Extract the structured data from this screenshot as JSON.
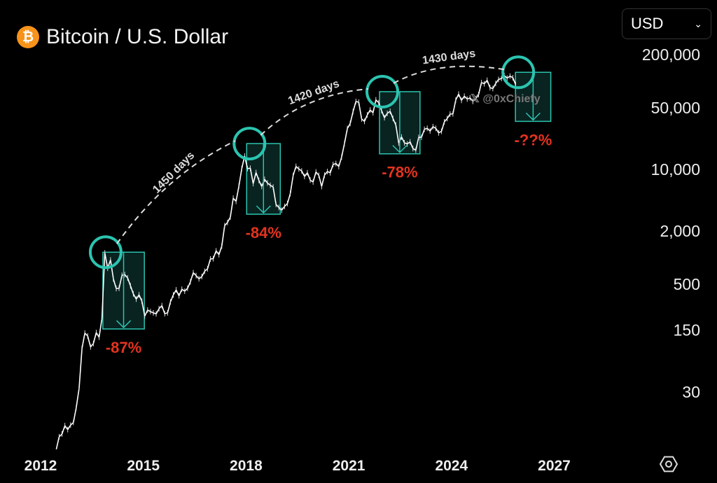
{
  "header": {
    "title": "Bitcoin / U.S. Dollar",
    "logo_icon": "bitcoin-icon",
    "currency": "USD"
  },
  "footer": {
    "settings_icon": "hexagon-settings-icon"
  },
  "watermark": "𝕏 @0xChiefy",
  "colors": {
    "background": "#000000",
    "price": "#ffffff",
    "accent": "#2bc4b0",
    "drawdown": "#e5331f",
    "logo": "#f7931a"
  },
  "chart_data": {
    "type": "line",
    "title": "Bitcoin / U.S. Dollar",
    "y_scale": "log",
    "grid": false,
    "legend": "none",
    "xlim": [
      2012,
      2027
    ],
    "ylim": [
      10,
      300000
    ],
    "x_ticks": [
      "2012",
      "2015",
      "2018",
      "2021",
      "2024",
      "2027"
    ],
    "y_ticks": [
      "200,000",
      "50,000",
      "10,000",
      "2,000",
      "500",
      "150",
      "30"
    ],
    "y_tick_values": [
      200000,
      50000,
      10000,
      2000,
      500,
      150,
      30
    ],
    "series": [
      {
        "x_start": "2012-06",
        "values": [
          6.7,
          9.3,
          10,
          12.4,
          11.2,
          12.6,
          13.5,
          20,
          33,
          93,
          139,
          129,
          97,
          106,
          141,
          125,
          204,
          1129,
          757,
          938,
          573,
          445,
          448,
          628,
          641,
          586,
          478,
          387,
          338,
          378,
          320,
          217,
          254,
          244,
          236,
          230,
          263,
          285,
          231,
          236,
          314,
          377,
          430,
          368,
          437,
          416,
          448,
          531,
          673,
          624,
          574,
          609,
          700,
          745,
          964,
          970,
          1190,
          1080,
          1350,
          2300,
          2500,
          2875,
          4700,
          4340,
          6470,
          10200,
          14150,
          10200,
          10300,
          6900,
          9200,
          7500,
          6400,
          7700,
          7000,
          6600,
          6300,
          4000,
          3700,
          3450,
          3800,
          4100,
          5300,
          8500,
          10800,
          10100,
          9600,
          8300,
          9150,
          7550,
          7200,
          9350,
          8550,
          6400,
          8600,
          9450,
          9140,
          11350,
          11650,
          10780,
          13800,
          19700,
          29000,
          33100,
          45200,
          58800,
          57700,
          37300,
          35000,
          41500,
          47100,
          43800,
          61300,
          57000,
          46300,
          38500,
          43200,
          45500,
          37700,
          31800,
          19900,
          23300,
          20000,
          19400,
          20500,
          17200,
          16500,
          23100,
          23100,
          28500,
          29200,
          27200,
          30500,
          29200,
          25900,
          27000,
          34600,
          37700,
          42300,
          42600,
          61200,
          71300,
          60600,
          67500,
          62700,
          64600,
          59000,
          63300,
          70200,
          96400,
          93400,
          102400,
          84400,
          82500,
          94200,
          104600,
          107100,
          115700,
          108200,
          114000,
          109500,
          91000
        ]
      }
    ],
    "annotations": {
      "cycles": [
        {
          "peak_year": 2013.9,
          "peak_price": 1150,
          "end_year": 2015.03,
          "bottom_price": 155,
          "label": "-87%"
        },
        {
          "peak_year": 2018.1,
          "peak_price": 19600,
          "end_year": 2019.0,
          "bottom_price": 3100,
          "label": "-84%"
        },
        {
          "peak_year": 2021.98,
          "peak_price": 76000,
          "end_year": 2023.08,
          "bottom_price": 15000,
          "label": "-78%"
        },
        {
          "peak_year": 2025.95,
          "peak_price": 126000,
          "end_year": 2026.9,
          "bottom_price": 35000,
          "label": "-??%"
        }
      ],
      "durations": [
        "1450 days",
        "1420 days",
        "1430 days"
      ]
    }
  }
}
